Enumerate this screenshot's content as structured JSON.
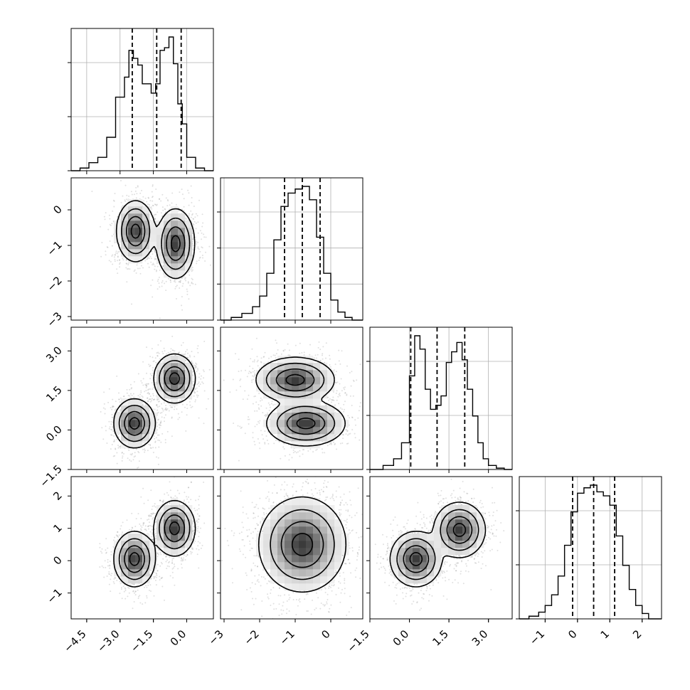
{
  "chart_data": {
    "type": "corner",
    "parameters": [
      {
        "range": [
          -5.2,
          1.2
        ],
        "ticks": [
          -4.5,
          -3.0,
          -1.5,
          0.0
        ],
        "tick_labels": [
          "−4.5",
          "−3.0",
          "−1.5",
          "0.0"
        ],
        "quantiles": [
          -2.45,
          -1.35,
          -0.25
        ],
        "hist": {
          "bins": [
            -5.2,
            -4.8,
            -4.4,
            -4.0,
            -3.6,
            -3.2,
            -2.8,
            -2.6,
            -2.4,
            -2.2,
            -2.0,
            -1.8,
            -1.6,
            -1.4,
            -1.2,
            -1.0,
            -0.8,
            -0.6,
            -0.4,
            -0.2,
            0.0,
            0.4,
            0.8,
            1.2
          ],
          "counts": [
            0,
            0.02,
            0.06,
            0.1,
            0.25,
            0.55,
            0.7,
            0.9,
            0.84,
            0.79,
            0.65,
            0.65,
            0.58,
            0.65,
            0.9,
            0.92,
            1.0,
            0.8,
            0.5,
            0.35,
            0.1,
            0.02,
            0
          ]
        },
        "hist_grid": [
          0.5,
          1.0
        ]
      },
      {
        "range": [
          -3.1,
          0.9
        ],
        "ticks": [
          -3,
          -2,
          -1,
          0
        ],
        "tick_labels": [
          "−3",
          "−2",
          "−1",
          "0"
        ],
        "quantiles": [
          -1.3,
          -0.8,
          -0.3
        ],
        "hist": {
          "bins": [
            -3.1,
            -2.8,
            -2.5,
            -2.2,
            -2.0,
            -1.8,
            -1.6,
            -1.4,
            -1.2,
            -1.0,
            -0.8,
            -0.6,
            -0.4,
            -0.2,
            0.0,
            0.2,
            0.4,
            0.6,
            0.9
          ],
          "counts": [
            0,
            0.02,
            0.05,
            0.1,
            0.18,
            0.35,
            0.6,
            0.85,
            0.95,
            0.98,
            1.0,
            0.9,
            0.62,
            0.35,
            0.15,
            0.06,
            0.02,
            0
          ]
        },
        "hist_grid": [
          0.4,
          0.8,
          1.2
        ]
      },
      {
        "range": [
          -1.5,
          3.9
        ],
        "ticks": [
          -1.5,
          0.0,
          1.5,
          3.0
        ],
        "tick_labels": [
          "−1.5",
          "0.0",
          "1.5",
          "3.0"
        ],
        "quantiles": [
          0.05,
          1.05,
          2.1
        ],
        "hist": {
          "bins": [
            -1.5,
            -1.0,
            -0.6,
            -0.3,
            0.0,
            0.2,
            0.4,
            0.6,
            0.8,
            1.0,
            1.2,
            1.4,
            1.6,
            1.8,
            2.0,
            2.2,
            2.4,
            2.6,
            2.8,
            3.0,
            3.3,
            3.6,
            3.9
          ],
          "counts": [
            0,
            0.03,
            0.08,
            0.2,
            0.7,
            1.0,
            0.9,
            0.6,
            0.45,
            0.48,
            0.55,
            0.8,
            0.88,
            0.95,
            0.82,
            0.6,
            0.4,
            0.2,
            0.08,
            0.03,
            0.01,
            0
          ]
        },
        "hist_grid": [
          0.5,
          1.0
        ]
      },
      {
        "range": [
          -1.8,
          2.6
        ],
        "ticks": [
          -1,
          0,
          1,
          2
        ],
        "tick_labels": [
          "−1",
          "0",
          "1",
          "2"
        ],
        "quantiles": [
          -0.15,
          0.5,
          1.15
        ],
        "hist": {
          "bins": [
            -1.8,
            -1.5,
            -1.2,
            -1.0,
            -0.8,
            -0.6,
            -0.4,
            -0.2,
            0.0,
            0.2,
            0.4,
            0.6,
            0.8,
            1.0,
            1.2,
            1.4,
            1.6,
            1.8,
            2.0,
            2.2,
            2.6
          ],
          "counts": [
            0,
            0.02,
            0.05,
            0.1,
            0.18,
            0.32,
            0.55,
            0.8,
            0.94,
            0.98,
            1.0,
            0.95,
            0.92,
            0.85,
            0.62,
            0.4,
            0.22,
            0.1,
            0.04,
            0
          ]
        },
        "hist_grid": [
          0.5,
          1.0
        ]
      }
    ],
    "pairs": [
      {
        "row": 1,
        "col": 0,
        "modes": [
          {
            "x": -2.3,
            "y": -0.6,
            "sx": 0.35,
            "sy": 0.35
          },
          {
            "x": -0.5,
            "y": -0.95,
            "sx": 0.35,
            "sy": 0.4
          }
        ],
        "contour_levels": [
          0.05,
          0.2,
          0.5,
          0.85
        ]
      },
      {
        "row": 2,
        "col": 0,
        "modes": [
          {
            "x": -2.35,
            "y": 0.25,
            "sx": 0.38,
            "sy": 0.38
          },
          {
            "x": -0.55,
            "y": 1.95,
            "sx": 0.38,
            "sy": 0.38
          }
        ],
        "contour_levels": [
          0.05,
          0.2,
          0.5,
          0.85
        ]
      },
      {
        "row": 2,
        "col": 1,
        "modes": [
          {
            "x": -0.7,
            "y": 0.25,
            "sx": 0.45,
            "sy": 0.35
          },
          {
            "x": -1.0,
            "y": 1.9,
            "sx": 0.45,
            "sy": 0.35
          }
        ],
        "contour_levels": [
          0.05,
          0.2,
          0.5,
          0.85
        ]
      },
      {
        "row": 3,
        "col": 0,
        "modes": [
          {
            "x": -2.35,
            "y": 0.05,
            "sx": 0.38,
            "sy": 0.35
          },
          {
            "x": -0.55,
            "y": 1.0,
            "sx": 0.38,
            "sy": 0.35
          }
        ],
        "contour_levels": [
          0.05,
          0.2,
          0.5,
          0.85
        ]
      },
      {
        "row": 3,
        "col": 1,
        "modes": [
          {
            "x": -0.8,
            "y": 0.5,
            "sx": 0.5,
            "sy": 0.6
          }
        ],
        "contour_levels": [
          0.05,
          0.2,
          0.5,
          0.85
        ]
      },
      {
        "row": 3,
        "col": 2,
        "modes": [
          {
            "x": 0.25,
            "y": 0.05,
            "sx": 0.4,
            "sy": 0.35
          },
          {
            "x": 1.9,
            "y": 0.95,
            "sx": 0.4,
            "sy": 0.35
          }
        ],
        "contour_levels": [
          0.05,
          0.2,
          0.5,
          0.85
        ]
      }
    ],
    "grid": true,
    "colors": {
      "line": "#000000",
      "grid": "#b0b0b0",
      "fill": "#444444"
    }
  }
}
